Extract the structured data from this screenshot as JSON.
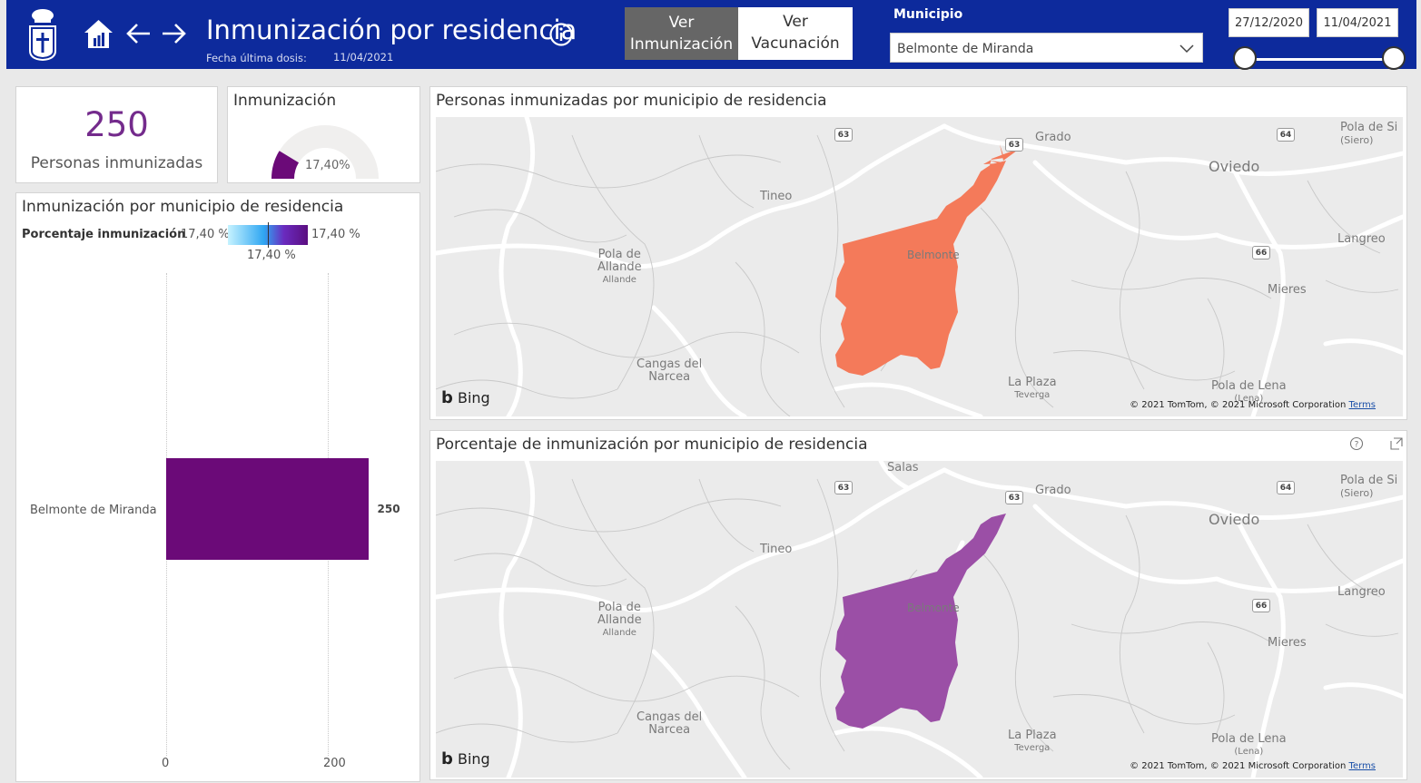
{
  "header": {
    "title": "Inmunización por residencia",
    "subtitle": "Fecha última dosis:",
    "last_dose_date": "11/04/2021",
    "btn_inmunizacion": [
      "Ver",
      "Inmunización"
    ],
    "btn_vacunacion": [
      "Ver",
      "Vacunación"
    ],
    "municipio_label": "Municipio",
    "municipio_value": "Belmonte de Miranda",
    "date_from": "27/12/2020",
    "date_to": "11/04/2021"
  },
  "kpi": {
    "value": "250",
    "label": "Personas inmunizadas"
  },
  "gauge": {
    "title": "Inmunización",
    "value_label": "17,40%",
    "fraction": 0.174
  },
  "bar_panel": {
    "title": "Inmunización por municipio de residencia",
    "legend_title": "Porcentaje inmunización",
    "legend_min": "17,40 %",
    "legend_max": "17,40 %",
    "legend_current": "17,40 %"
  },
  "map1": {
    "title": "Personas inmunizadas por municipio de residencia",
    "fill": "#f47a5a"
  },
  "map2": {
    "title": "Porcentaje de inmunización por municipio de residencia",
    "fill": "#9b4fa6"
  },
  "map_labels": {
    "grado": "Grado",
    "salas": "Salas",
    "tineo": "Tineo",
    "oviedo": "Oviedo",
    "pola_siero": [
      "Pola de Si",
      "(Siero)"
    ],
    "langreo": "Langreo",
    "mieres": "Mieres",
    "belmonte": "Belmonte",
    "pola_allande": [
      "Pola de",
      "Allande",
      "Allande"
    ],
    "cangas": [
      "Cangas del",
      "Narcea"
    ],
    "la_plaza": [
      "La Plaza",
      "Teverga"
    ],
    "pola_lena": [
      "Pola de Lena",
      "(Lena)"
    ],
    "shield_63": "63",
    "shield_64": "64",
    "shield_66": "66",
    "bing": "Bing",
    "copyright": "© 2021 TomTom, © 2021 Microsoft Corporation",
    "terms": "Terms"
  },
  "chart_data": {
    "type": "bar",
    "orientation": "horizontal",
    "categories": [
      "Belmonte de Miranda"
    ],
    "values": [
      250
    ],
    "data_labels": [
      "250"
    ],
    "xticks": [
      "0",
      "200"
    ],
    "xlim": [
      0,
      286
    ],
    "color": "#6b0a78"
  },
  "colors": {
    "header": "#0d2a9c",
    "accent_purple": "#742b8c",
    "gauge_fill": "#6b0a78"
  }
}
